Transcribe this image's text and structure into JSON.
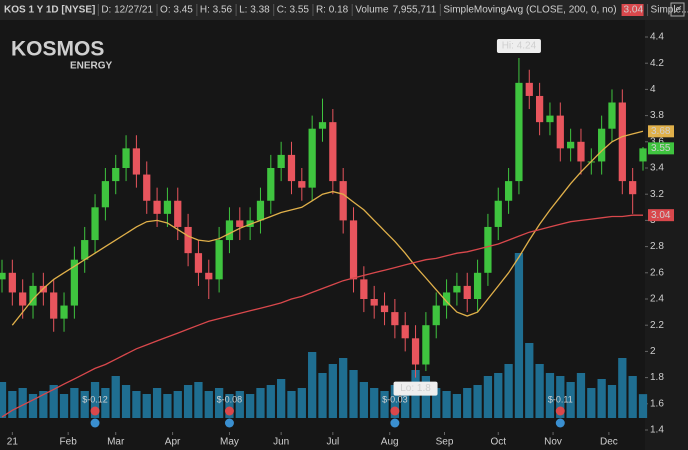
{
  "header": {
    "symbol": "KOS 1 Y 1D [NYSE]",
    "items": [
      "D: 12/27/21",
      "O: 3.45",
      "H: 3.56",
      "L: 3.38",
      "C: 3.55",
      "R: 0.18"
    ],
    "volume_label": "Volume",
    "volume_value": "7,955,711",
    "study": "SimpleMovingAvg (CLOSE, 200, 0, no)",
    "study_value": "3.04",
    "study2": "Simple..."
  },
  "logo": {
    "name": "KOSMOS",
    "sub": "ENERGY"
  },
  "chart_data": {
    "type": "candlestick",
    "ylim": [
      1.4,
      4.4
    ],
    "yticks": [
      1.4,
      1.6,
      1.8,
      2,
      2.2,
      2.4,
      2.6,
      2.8,
      3,
      3.2,
      3.4,
      3.6,
      3.8,
      4,
      4.2,
      4.4
    ],
    "grid": false,
    "xlim": [
      0,
      62
    ],
    "xticks": [
      {
        "value": 1,
        "label": "21"
      },
      {
        "value": 6.4,
        "label": "Feb"
      },
      {
        "value": 11,
        "label": "Mar"
      },
      {
        "value": 16.5,
        "label": "Apr"
      },
      {
        "value": 22,
        "label": "May"
      },
      {
        "value": 27,
        "label": "Jun"
      },
      {
        "value": 32,
        "label": "Jul"
      },
      {
        "value": 37.5,
        "label": "Aug"
      },
      {
        "value": 42.8,
        "label": "Sep"
      },
      {
        "value": 48,
        "label": "Oct"
      },
      {
        "value": 53.3,
        "label": "Nov"
      },
      {
        "value": 58.7,
        "label": "Dec"
      }
    ],
    "up_color": "#3fc43f",
    "down_color": "#e8555d",
    "open": [
      2.55,
      2.6,
      2.45,
      2.35,
      2.5,
      2.45,
      2.25,
      2.35,
      2.7,
      2.85,
      3.1,
      3.3,
      3.4,
      3.55,
      3.35,
      3.15,
      3.05,
      3.15,
      2.95,
      2.75,
      2.6,
      2.55,
      2.85,
      3.0,
      2.95,
      3.0,
      3.15,
      3.4,
      3.5,
      3.3,
      3.25,
      3.7,
      3.75,
      3.3,
      3.0,
      2.55,
      2.4,
      2.35,
      2.3,
      2.2,
      2.1,
      1.9,
      2.2,
      2.35,
      2.45,
      2.5,
      2.4,
      2.6,
      2.95,
      3.15,
      3.3,
      4.05,
      3.95,
      3.75,
      3.8,
      3.55,
      3.6,
      3.45,
      3.45,
      3.7,
      3.9,
      3.3,
      3.45
    ],
    "high": [
      2.7,
      2.7,
      2.55,
      2.6,
      2.6,
      2.55,
      2.45,
      2.8,
      2.95,
      3.2,
      3.4,
      3.5,
      3.65,
      3.65,
      3.45,
      3.25,
      3.25,
      3.25,
      3.05,
      2.85,
      2.7,
      2.95,
      3.1,
      3.1,
      3.1,
      3.25,
      3.5,
      3.6,
      3.6,
      3.4,
      3.8,
      3.93,
      3.85,
      3.4,
      3.1,
      2.65,
      2.5,
      2.45,
      2.4,
      2.3,
      2.2,
      2.3,
      2.45,
      2.55,
      2.6,
      2.6,
      2.7,
      3.05,
      3.25,
      3.4,
      4.24,
      4.15,
      4.05,
      3.9,
      3.9,
      3.7,
      3.7,
      3.55,
      3.8,
      4.0,
      4.0,
      3.4,
      3.56
    ],
    "low": [
      2.45,
      2.35,
      2.25,
      2.25,
      2.35,
      2.15,
      2.15,
      2.25,
      2.6,
      2.75,
      3.0,
      3.2,
      3.3,
      3.25,
      3.05,
      2.95,
      2.95,
      2.85,
      2.65,
      2.5,
      2.4,
      2.45,
      2.75,
      2.85,
      2.85,
      2.9,
      3.05,
      3.3,
      3.2,
      3.15,
      3.15,
      3.6,
      3.2,
      2.9,
      2.45,
      2.3,
      2.25,
      2.2,
      2.1,
      2.0,
      1.8,
      1.85,
      2.1,
      2.25,
      2.35,
      2.3,
      2.3,
      2.5,
      2.85,
      3.05,
      3.2,
      3.85,
      3.65,
      3.65,
      3.45,
      3.45,
      3.35,
      3.35,
      3.35,
      3.6,
      3.2,
      3.05,
      3.38
    ],
    "close": [
      2.6,
      2.45,
      2.35,
      2.5,
      2.45,
      2.25,
      2.35,
      2.7,
      2.85,
      3.1,
      3.3,
      3.4,
      3.55,
      3.35,
      3.15,
      3.05,
      3.15,
      2.95,
      2.75,
      2.6,
      2.55,
      2.85,
      3.0,
      2.95,
      3.0,
      3.15,
      3.4,
      3.5,
      3.3,
      3.25,
      3.7,
      3.75,
      3.3,
      3.0,
      2.55,
      2.4,
      2.35,
      2.3,
      2.2,
      2.1,
      1.9,
      2.2,
      2.35,
      2.45,
      2.5,
      2.4,
      2.6,
      2.95,
      3.15,
      3.3,
      4.05,
      3.95,
      3.75,
      3.8,
      3.55,
      3.6,
      3.45,
      3.45,
      3.7,
      3.9,
      3.3,
      3.2,
      3.55
    ],
    "series": [
      {
        "color": "#e0b04a",
        "values": [
          null,
          2.2,
          2.3,
          2.4,
          2.48,
          2.55,
          2.6,
          2.65,
          2.7,
          2.75,
          2.8,
          2.85,
          2.9,
          2.95,
          2.99,
          3.0,
          2.98,
          2.93,
          2.88,
          2.85,
          2.84,
          2.86,
          2.9,
          2.94,
          2.97,
          3.0,
          3.03,
          3.06,
          3.08,
          3.1,
          3.15,
          3.2,
          3.22,
          3.2,
          3.14,
          3.08,
          3.0,
          2.92,
          2.84,
          2.75,
          2.65,
          2.56,
          2.47,
          2.38,
          2.3,
          2.27,
          2.3,
          2.4,
          2.5,
          2.6,
          2.72,
          2.85,
          2.97,
          3.08,
          3.18,
          3.28,
          3.37,
          3.45,
          3.53,
          3.6,
          3.64,
          3.66,
          3.68
        ]
      },
      {
        "color": "#d9484c",
        "values": [
          1.5,
          1.55,
          1.59,
          1.63,
          1.67,
          1.71,
          1.75,
          1.79,
          1.83,
          1.87,
          1.9,
          1.94,
          1.98,
          2.02,
          2.05,
          2.08,
          2.11,
          2.14,
          2.17,
          2.2,
          2.23,
          2.25,
          2.27,
          2.29,
          2.31,
          2.33,
          2.35,
          2.37,
          2.4,
          2.42,
          2.45,
          2.48,
          2.51,
          2.54,
          2.56,
          2.58,
          2.6,
          2.62,
          2.64,
          2.66,
          2.68,
          2.7,
          2.71,
          2.73,
          2.75,
          2.76,
          2.78,
          2.8,
          2.82,
          2.85,
          2.88,
          2.91,
          2.93,
          2.95,
          2.97,
          2.99,
          3.0,
          3.01,
          3.02,
          3.03,
          3.03,
          3.04,
          3.04
        ]
      }
    ],
    "volume": {
      "color": "#1f6e91",
      "values": [
        12000000,
        9000000,
        10000000,
        8000000,
        9000000,
        11000000,
        8000000,
        10000000,
        9000000,
        12000000,
        10000000,
        14000000,
        11000000,
        9000000,
        8000000,
        10000000,
        8000000,
        9000000,
        11000000,
        12000000,
        9000000,
        10000000,
        8000000,
        9000000,
        8000000,
        10000000,
        11000000,
        13000000,
        9000000,
        10000000,
        22000000,
        15000000,
        18000000,
        20000000,
        16000000,
        12000000,
        10000000,
        9000000,
        11000000,
        12000000,
        16000000,
        14000000,
        10000000,
        9000000,
        8000000,
        10000000,
        11000000,
        14000000,
        15000000,
        18000000,
        55000000,
        25000000,
        18000000,
        15000000,
        14000000,
        12000000,
        15000000,
        10000000,
        13000000,
        11000000,
        20000000,
        14000000,
        7955711
      ]
    },
    "y2lim": [
      0,
      60000000
    ],
    "badges": [
      {
        "value": 3.68,
        "color": "#e0b04a"
      },
      {
        "value": 3.55,
        "color": "#3fc43f"
      },
      {
        "value": 3.04,
        "color": "#d9484c"
      }
    ],
    "annotations": [
      {
        "text": "Hi: 4.24",
        "value": 4.24,
        "index": 50
      },
      {
        "text": "Lo: 1.8",
        "value": 1.8,
        "index": 40
      }
    ],
    "earnings": [
      {
        "label": "$-0.12",
        "index": 9
      },
      {
        "label": "$-0.08",
        "index": 22
      },
      {
        "label": "$-0.03",
        "index": 38
      },
      {
        "label": "$-0.11",
        "index": 54
      }
    ]
  }
}
